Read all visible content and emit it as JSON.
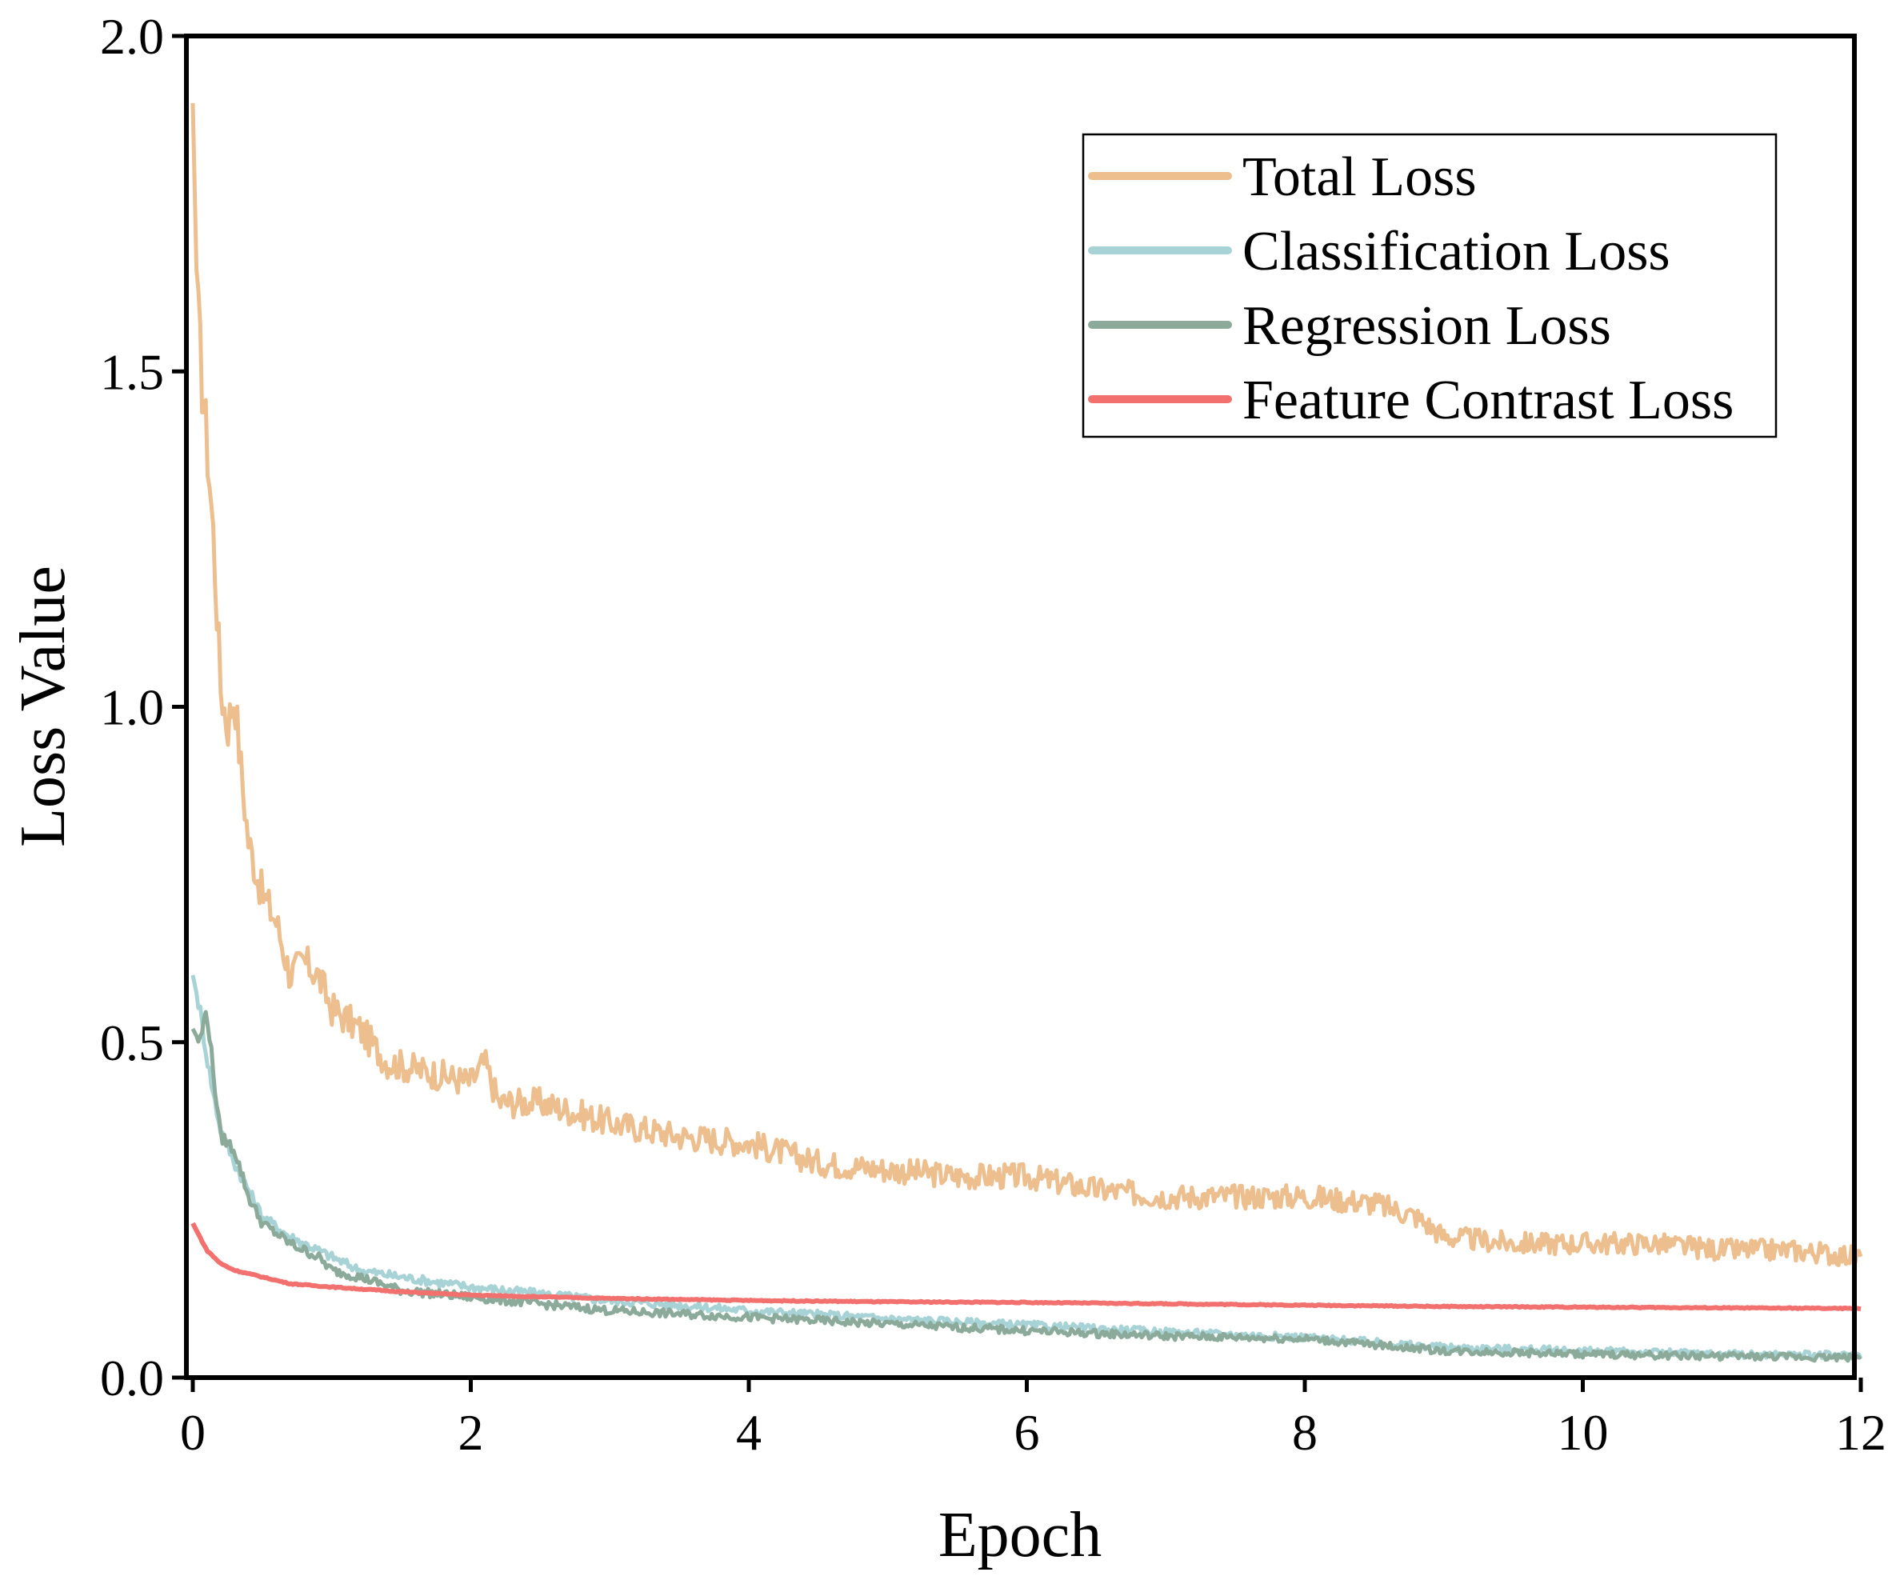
{
  "chart_data": {
    "type": "line",
    "title": "",
    "xlabel": "Epoch",
    "ylabel": "Loss Value",
    "xlim": [
      0,
      12
    ],
    "ylim": [
      0.0,
      2.0
    ],
    "xticks": [
      0,
      2,
      4,
      6,
      8,
      10,
      12
    ],
    "xtick_labels": [
      "0",
      "2",
      "4",
      "6",
      "8",
      "10",
      "12"
    ],
    "yticks": [
      0.0,
      0.5,
      1.0,
      1.5,
      2.0
    ],
    "ytick_labels": [
      "0.0",
      "0.5",
      "1.0",
      "1.5",
      "2.0"
    ],
    "legend_position": "top-right",
    "series": [
      {
        "name": "Total Loss",
        "color": "#EDBE8E",
        "x": [
          0,
          0.03,
          0.06,
          0.1,
          0.15,
          0.2,
          0.25,
          0.3,
          0.35,
          0.4,
          0.5,
          0.6,
          0.7,
          0.8,
          0.9,
          1.0,
          1.2,
          1.4,
          1.6,
          1.8,
          2.0,
          2.1,
          2.2,
          2.5,
          3.0,
          3.5,
          4.0,
          4.5,
          5.0,
          5.5,
          6.0,
          6.5,
          7.0,
          7.5,
          8.0,
          8.5,
          8.8,
          9.0,
          9.5,
          10.0,
          10.5,
          11.0,
          11.5,
          12.0
        ],
        "y": [
          1.9,
          1.62,
          1.5,
          1.4,
          1.25,
          1.03,
          0.97,
          1.02,
          0.9,
          0.8,
          0.72,
          0.68,
          0.6,
          0.62,
          0.6,
          0.55,
          0.52,
          0.47,
          0.46,
          0.45,
          0.44,
          0.47,
          0.41,
          0.41,
          0.38,
          0.36,
          0.35,
          0.32,
          0.31,
          0.3,
          0.3,
          0.28,
          0.27,
          0.27,
          0.27,
          0.26,
          0.24,
          0.21,
          0.2,
          0.2,
          0.2,
          0.19,
          0.19,
          0.18
        ]
      },
      {
        "name": "Classification Loss",
        "color": "#A8D3D6",
        "x": [
          0,
          0.05,
          0.1,
          0.15,
          0.2,
          0.3,
          0.4,
          0.5,
          0.7,
          0.9,
          1.0,
          1.2,
          1.5,
          2.0,
          2.5,
          3.0,
          3.5,
          4.0,
          5.0,
          6.0,
          7.0,
          8.0,
          9.0,
          10.0,
          11.0,
          12.0
        ],
        "y": [
          0.6,
          0.55,
          0.48,
          0.42,
          0.37,
          0.32,
          0.28,
          0.24,
          0.21,
          0.19,
          0.18,
          0.16,
          0.15,
          0.135,
          0.125,
          0.115,
          0.108,
          0.1,
          0.088,
          0.078,
          0.068,
          0.06,
          0.045,
          0.04,
          0.035,
          0.033
        ]
      },
      {
        "name": "Regression Loss",
        "color": "#8BAA9A",
        "x": [
          0,
          0.05,
          0.1,
          0.15,
          0.2,
          0.3,
          0.4,
          0.5,
          0.7,
          0.9,
          1.0,
          1.2,
          1.5,
          2.0,
          2.5,
          3.0,
          3.5,
          4.0,
          5.0,
          6.0,
          7.0,
          8.0,
          9.0,
          10.0,
          11.0,
          12.0
        ],
        "y": [
          0.52,
          0.5,
          0.55,
          0.45,
          0.36,
          0.34,
          0.27,
          0.23,
          0.2,
          0.18,
          0.16,
          0.15,
          0.13,
          0.12,
          0.11,
          0.1,
          0.095,
          0.09,
          0.08,
          0.07,
          0.062,
          0.058,
          0.04,
          0.035,
          0.032,
          0.03
        ]
      },
      {
        "name": "Feature Contrast Loss",
        "color": "#F2716E",
        "x": [
          0,
          0.05,
          0.1,
          0.2,
          0.3,
          0.5,
          0.7,
          1.0,
          1.5,
          2.0,
          3.0,
          4.0,
          5.0,
          6.0,
          7.0,
          8.0,
          9.0,
          10.0,
          11.0,
          12.0
        ],
        "y": [
          0.23,
          0.21,
          0.19,
          0.17,
          0.16,
          0.15,
          0.14,
          0.135,
          0.128,
          0.123,
          0.118,
          0.115,
          0.113,
          0.112,
          0.11,
          0.108,
          0.106,
          0.105,
          0.104,
          0.103
        ]
      }
    ]
  }
}
